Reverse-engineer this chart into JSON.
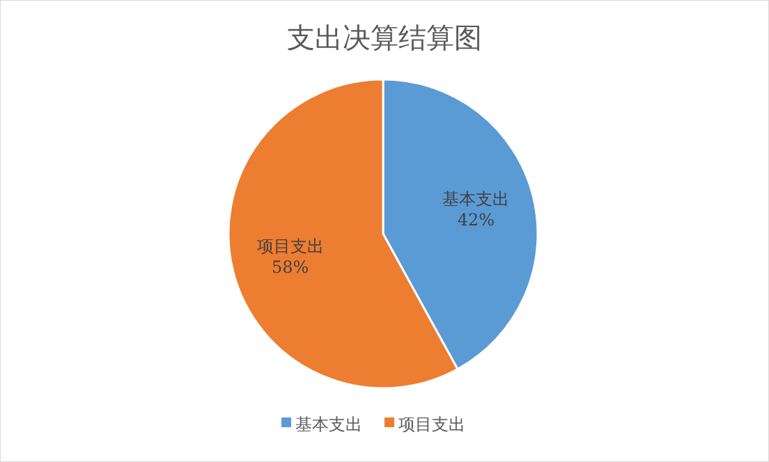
{
  "chart_data": {
    "type": "pie",
    "title": "支出决算结算图",
    "categories": [
      "基本支出",
      "项目支出"
    ],
    "values": [
      42,
      58
    ],
    "colors": [
      "#5b9bd5",
      "#ed7d31"
    ],
    "value_labels": [
      "42%",
      "58%"
    ],
    "legend": "bottom"
  }
}
